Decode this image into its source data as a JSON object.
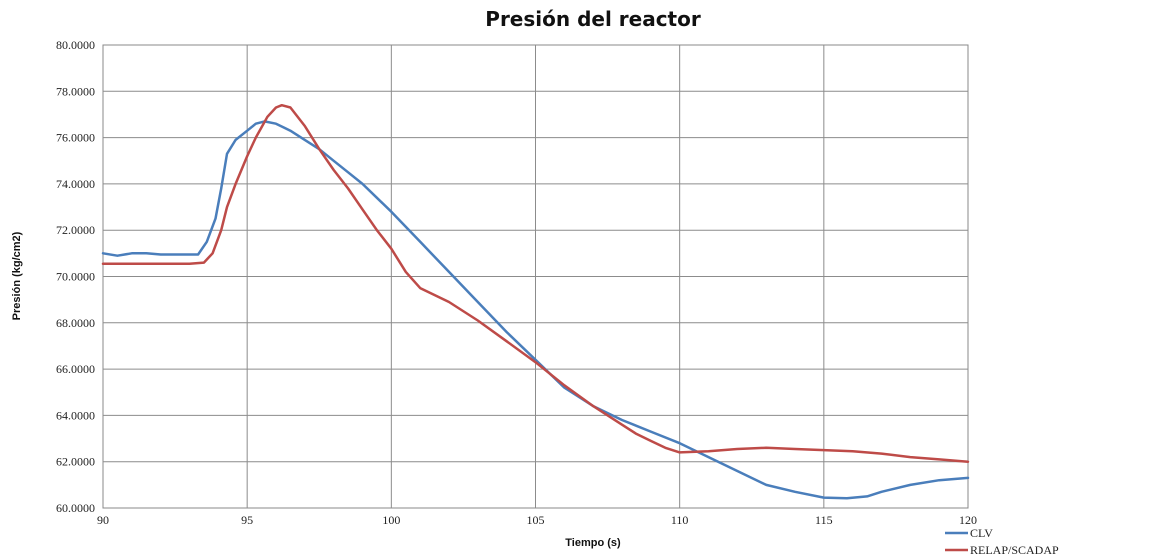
{
  "chart_data": {
    "type": "line",
    "title": "Presión del reactor",
    "xlabel": "Tiempo (s)",
    "ylabel": "Presión (kg/cm2)",
    "xlim": [
      90,
      120
    ],
    "ylim": [
      60,
      80
    ],
    "x_ticks": [
      "90",
      "95",
      "100",
      "105",
      "110",
      "115",
      "120"
    ],
    "y_ticks": [
      "60.0000",
      "62.0000",
      "64.0000",
      "66.0000",
      "68.0000",
      "70.0000",
      "72.0000",
      "74.0000",
      "76.0000",
      "78.0000",
      "80.0000"
    ],
    "grid": true,
    "legend_position": "bottom-right",
    "series": [
      {
        "name": "CLV",
        "color": "#4a7ebb",
        "x": [
          90,
          90.5,
          91,
          91.5,
          92,
          92.5,
          93,
          93.3,
          93.6,
          93.9,
          94.1,
          94.3,
          94.6,
          95,
          95.3,
          95.6,
          96,
          96.5,
          97,
          97.5,
          98,
          98.5,
          99,
          99.5,
          100,
          101,
          102,
          103,
          104,
          105,
          106,
          107,
          108,
          109,
          110,
          111,
          112,
          113,
          114,
          115,
          115.8,
          116.5,
          117,
          118,
          119,
          120
        ],
        "y": [
          71.0,
          70.9,
          71.0,
          71.0,
          70.95,
          70.95,
          70.95,
          70.95,
          71.5,
          72.5,
          73.8,
          75.3,
          75.9,
          76.3,
          76.6,
          76.7,
          76.6,
          76.3,
          75.9,
          75.5,
          75.0,
          74.5,
          74.0,
          73.4,
          72.8,
          71.5,
          70.2,
          68.9,
          67.6,
          66.4,
          65.2,
          64.4,
          63.8,
          63.3,
          62.8,
          62.2,
          61.6,
          61.0,
          60.7,
          60.45,
          60.42,
          60.5,
          60.7,
          61.0,
          61.2,
          61.3
        ]
      },
      {
        "name": "RELAP/SCADAP",
        "color": "#be4b48",
        "x": [
          90,
          91,
          92,
          93,
          93.5,
          93.8,
          94.1,
          94.3,
          94.6,
          95,
          95.3,
          95.7,
          96,
          96.2,
          96.5,
          97,
          97.5,
          98,
          98.5,
          99,
          99.5,
          100,
          100.5,
          101,
          102,
          103,
          104,
          105,
          106,
          107,
          108,
          108.5,
          109,
          109.5,
          110,
          111,
          112,
          113,
          114,
          115,
          116,
          117,
          118,
          119,
          120
        ],
        "y": [
          70.55,
          70.55,
          70.55,
          70.55,
          70.6,
          71.0,
          72.0,
          73.0,
          74.0,
          75.2,
          76.0,
          76.9,
          77.3,
          77.4,
          77.3,
          76.5,
          75.5,
          74.6,
          73.8,
          72.9,
          72.0,
          71.2,
          70.2,
          69.5,
          68.9,
          68.1,
          67.2,
          66.3,
          65.3,
          64.4,
          63.6,
          63.2,
          62.9,
          62.6,
          62.4,
          62.45,
          62.55,
          62.6,
          62.55,
          62.5,
          62.45,
          62.35,
          62.2,
          62.1,
          62.0
        ]
      }
    ]
  }
}
